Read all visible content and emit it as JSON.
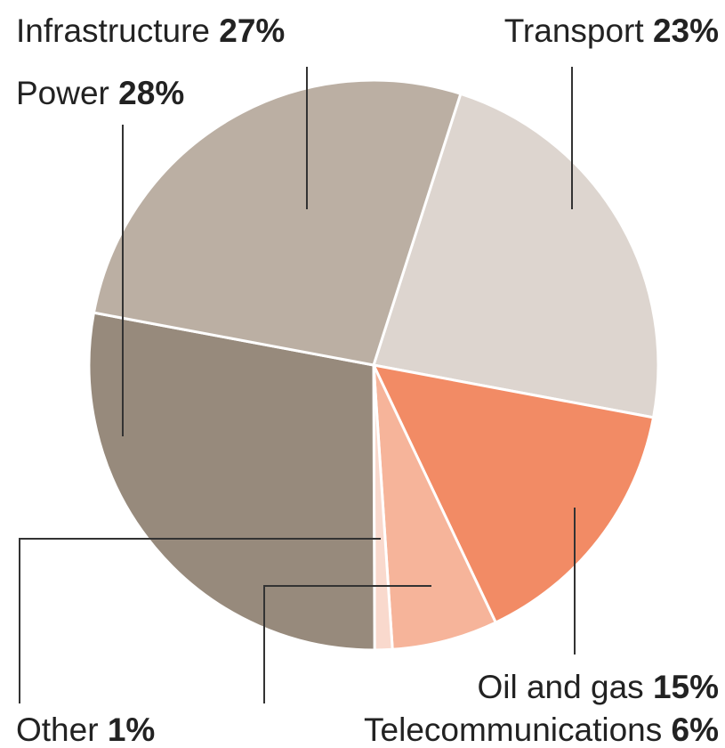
{
  "chart_data": {
    "type": "pie",
    "labels": [
      "Transport",
      "Oil and gas",
      "Telecommunications",
      "Other",
      "Power",
      "Infrastructure"
    ],
    "values": [
      23,
      15,
      6,
      1,
      28,
      27
    ],
    "value_labels": [
      "23%",
      "15%",
      "6%",
      "1%",
      "28%",
      "27%"
    ],
    "colors": [
      "#ddd5cf",
      "#f28b65",
      "#f6b49a",
      "#f9d9cd",
      "#978a7c",
      "#bbafa3"
    ]
  }
}
